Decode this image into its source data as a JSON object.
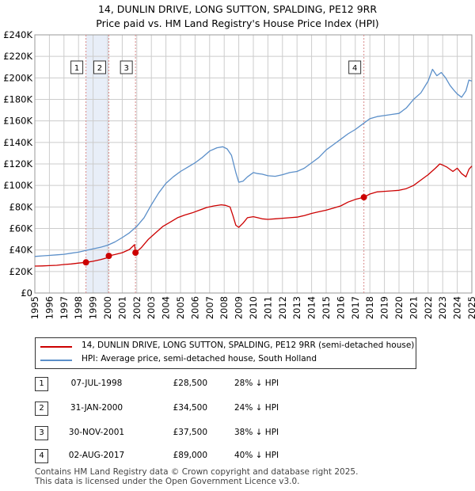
{
  "title_line1": "14, DUNLIN DRIVE, LONG SUTTON, SPALDING, PE12 9RR",
  "title_line2": "Price paid vs. HM Land Registry's House Price Index (HPI)",
  "colors": {
    "red": "#cc0000",
    "blue": "#5b8fc9",
    "shade": "#e8eef8",
    "grid": "#cccccc",
    "vline": "#d98a8a"
  },
  "chart_data": {
    "type": "line",
    "title": "Price paid vs. HM Land Registry's House Price Index (HPI)",
    "xlim": [
      1995,
      2025
    ],
    "ylim": [
      0,
      240000
    ],
    "xticks": [
      1995,
      1996,
      1997,
      1998,
      1999,
      2000,
      2001,
      2002,
      2003,
      2004,
      2005,
      2006,
      2007,
      2008,
      2009,
      2010,
      2011,
      2012,
      2013,
      2014,
      2015,
      2016,
      2017,
      2018,
      2019,
      2020,
      2021,
      2022,
      2023,
      2024,
      2025
    ],
    "yticks": [
      {
        "v": 0,
        "label": "£0"
      },
      {
        "v": 20000,
        "label": "£20K"
      },
      {
        "v": 40000,
        "label": "£40K"
      },
      {
        "v": 60000,
        "label": "£60K"
      },
      {
        "v": 80000,
        "label": "£80K"
      },
      {
        "v": 100000,
        "label": "£100K"
      },
      {
        "v": 120000,
        "label": "£120K"
      },
      {
        "v": 140000,
        "label": "£140K"
      },
      {
        "v": 160000,
        "label": "£160K"
      },
      {
        "v": 180000,
        "label": "£180K"
      },
      {
        "v": 200000,
        "label": "£200K"
      },
      {
        "v": 220000,
        "label": "£220K"
      },
      {
        "v": 240000,
        "label": "£240K"
      }
    ],
    "shaded_spans": [
      [
        1998.51,
        2000.08
      ]
    ],
    "series": [
      {
        "name": "14, DUNLIN DRIVE, LONG SUTTON, SPALDING, PE12 9RR (semi-detached house)",
        "color": "#cc0000",
        "x": [
          1995,
          1995.5,
          1996,
          1996.5,
          1997,
          1997.5,
          1998,
          1998.51,
          1999,
          1999.5,
          2000,
          2000.08,
          2000.5,
          2001,
          2001.5,
          2001.85,
          2001.91,
          2002.3,
          2002.8,
          2003.3,
          2003.8,
          2004.3,
          2004.8,
          2005.3,
          2005.8,
          2006.3,
          2006.8,
          2007.3,
          2007.8,
          2008.1,
          2008.4,
          2008.6,
          2008.8,
          2009,
          2009.3,
          2009.6,
          2010,
          2010.3,
          2010.6,
          2011,
          2011.5,
          2012,
          2012.5,
          2013,
          2013.5,
          2014,
          2014.5,
          2015,
          2015.5,
          2016,
          2016.5,
          2017,
          2017.59,
          2018,
          2018.5,
          2019,
          2019.5,
          2020,
          2020.5,
          2021,
          2021.5,
          2022,
          2022.5,
          2022.8,
          2023,
          2023.3,
          2023.7,
          2024,
          2024.3,
          2024.6,
          2024.8,
          2025
        ],
        "y": [
          25000,
          25200,
          25500,
          25800,
          26500,
          27000,
          27800,
          28500,
          29500,
          31000,
          32800,
          34500,
          35800,
          37500,
          40500,
          45000,
          37500,
          42000,
          50000,
          56000,
          62000,
          66000,
          70000,
          72500,
          74500,
          77000,
          79500,
          81000,
          82000,
          81500,
          80000,
          72000,
          63000,
          61000,
          65000,
          70000,
          71000,
          70000,
          69000,
          68500,
          69000,
          69500,
          70000,
          70500,
          72000,
          74000,
          75500,
          77000,
          79000,
          81000,
          84500,
          87000,
          89000,
          92000,
          94000,
          94500,
          95000,
          95500,
          97000,
          100000,
          105000,
          110000,
          116000,
          120000,
          119000,
          117000,
          113000,
          116000,
          111000,
          108000,
          115000,
          118000
        ]
      },
      {
        "name": "HPI: Average price, semi-detached house, South Holland",
        "color": "#5b8fc9",
        "x": [
          1995,
          1995.5,
          1996,
          1996.5,
          1997,
          1997.5,
          1998,
          1998.5,
          1999,
          1999.5,
          2000,
          2000.5,
          2001,
          2001.5,
          2002,
          2002.5,
          2003,
          2003.5,
          2004,
          2004.5,
          2005,
          2005.5,
          2006,
          2006.5,
          2007,
          2007.5,
          2007.9,
          2008.2,
          2008.5,
          2008.8,
          2009,
          2009.3,
          2009.6,
          2010,
          2010.3,
          2010.6,
          2011,
          2011.5,
          2012,
          2012.5,
          2013,
          2013.5,
          2014,
          2014.5,
          2015,
          2015.5,
          2016,
          2016.5,
          2017,
          2017.5,
          2018,
          2018.5,
          2019,
          2019.5,
          2020,
          2020.5,
          2021,
          2021.5,
          2022,
          2022.3,
          2022.6,
          2022.9,
          2023.2,
          2023.5,
          2023.8,
          2024,
          2024.3,
          2024.6,
          2024.8,
          2025
        ],
        "y": [
          34000,
          34500,
          35000,
          35500,
          36000,
          37000,
          38000,
          39500,
          41000,
          42500,
          44500,
          47500,
          51500,
          56000,
          62000,
          70000,
          82000,
          93000,
          102000,
          108000,
          113000,
          117000,
          121000,
          126000,
          132000,
          135000,
          136000,
          134000,
          128000,
          112000,
          103000,
          104000,
          108000,
          112000,
          111000,
          110500,
          109000,
          108500,
          110000,
          112000,
          113000,
          116000,
          121000,
          126000,
          133000,
          138000,
          143000,
          148000,
          152000,
          157000,
          162000,
          164000,
          165000,
          166000,
          167000,
          172000,
          180000,
          186000,
          197000,
          208000,
          202000,
          205000,
          200000,
          193000,
          188000,
          185000,
          182000,
          188000,
          198000,
          197000
        ]
      }
    ],
    "markers": [
      {
        "label": "1",
        "x": 1998.51,
        "y": 28500
      },
      {
        "label": "2",
        "x": 2000.08,
        "y": 34500
      },
      {
        "label": "3",
        "x": 2001.91,
        "y": 37500
      },
      {
        "label": "4",
        "x": 2017.59,
        "y": 89000
      }
    ]
  },
  "legend": [
    {
      "label": "14, DUNLIN DRIVE, LONG SUTTON, SPALDING, PE12 9RR (semi-detached house)",
      "color": "#cc0000"
    },
    {
      "label": "HPI: Average price, semi-detached house, South Holland",
      "color": "#5b8fc9"
    }
  ],
  "transactions": [
    {
      "num": "1",
      "date": "07-JUL-1998",
      "price": "£28,500",
      "hpi": "28% ↓ HPI"
    },
    {
      "num": "2",
      "date": "31-JAN-2000",
      "price": "£34,500",
      "hpi": "24% ↓ HPI"
    },
    {
      "num": "3",
      "date": "30-NOV-2001",
      "price": "£37,500",
      "hpi": "38% ↓ HPI"
    },
    {
      "num": "4",
      "date": "02-AUG-2017",
      "price": "£89,000",
      "hpi": "40% ↓ HPI"
    }
  ],
  "footer_line1": "Contains HM Land Registry data © Crown copyright and database right 2025.",
  "footer_line2": "This data is licensed under the Open Government Licence v3.0."
}
